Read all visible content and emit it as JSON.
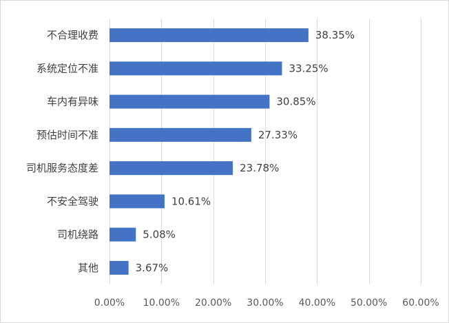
{
  "chart_data": {
    "type": "bar",
    "orientation": "horizontal",
    "categories": [
      "不合理收费",
      "系统定位不准",
      "车内有异味",
      "预估时间不准",
      "司机服务态度差",
      "不安全驾驶",
      "司机绕路",
      "其他"
    ],
    "values": [
      38.35,
      33.25,
      30.85,
      27.33,
      23.78,
      10.61,
      5.08,
      3.67
    ],
    "value_labels": [
      "38.35%",
      "33.25%",
      "30.85%",
      "27.33%",
      "23.78%",
      "10.61%",
      "5.08%",
      "3.67%"
    ],
    "xlim": [
      0,
      60
    ],
    "x_ticks": [
      0,
      10,
      20,
      30,
      40,
      50,
      60
    ],
    "x_tick_labels": [
      "0.00%",
      "10.00%",
      "20.00%",
      "30.00%",
      "40.00%",
      "50.00%",
      "60.00%"
    ],
    "grid": "vertical",
    "bar_color": "#4472c4",
    "grid_color": "#d9d9d9",
    "text_color": "#404040"
  }
}
